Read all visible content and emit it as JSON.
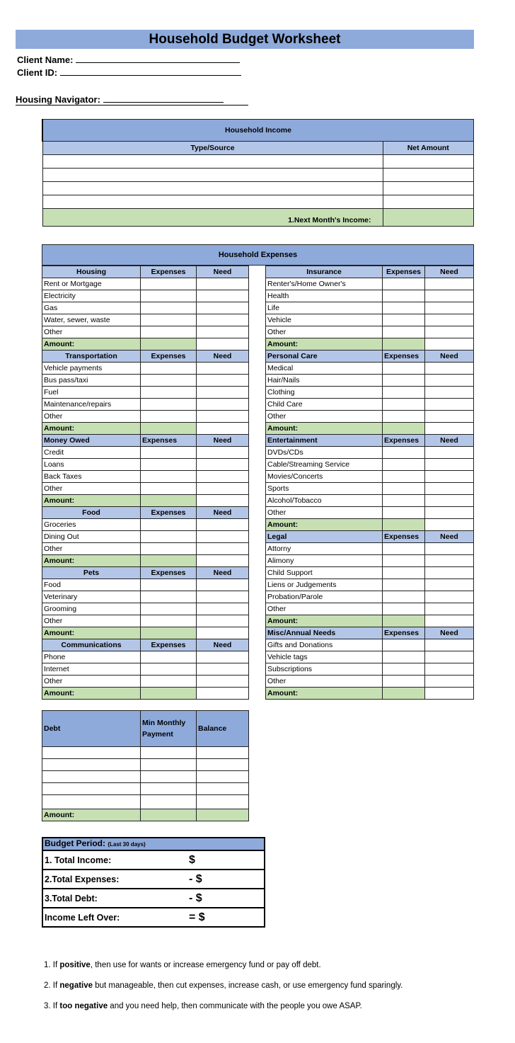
{
  "title": "Household Budget Worksheet",
  "client_name_label": "Client Name:",
  "client_id_label": "Client ID:",
  "housing_navigator_label": "Housing Navigator:",
  "income": {
    "title": "Household Income",
    "col_type": "Type/Source",
    "col_amount": "Net Amount",
    "total_label": "1.Next Month's Income:"
  },
  "expenses": {
    "title": "Household Expenses",
    "left": [
      {
        "name": "Housing",
        "center": true,
        "exp": "Expenses",
        "need": "Need",
        "items": [
          "Rent or Mortgage",
          "Electricity",
          "Gas",
          "Water, sewer, waste",
          "Other"
        ]
      },
      {
        "name": "Transportation",
        "center": true,
        "exp": "Expenses",
        "need": "Need",
        "items": [
          "Vehicle payments",
          "Bus pass/taxi",
          "Fuel",
          "Maintenance/repairs",
          "Other"
        ]
      },
      {
        "name": "Money Owed",
        "center": false,
        "exp": "Expenses",
        "need": "Need",
        "items": [
          "Credit",
          "Loans",
          "Back Taxes",
          "Other"
        ]
      },
      {
        "name": "Food",
        "center": true,
        "exp": "Expenses",
        "need": "Need",
        "items": [
          "Groceries",
          "Dining Out",
          "Other"
        ]
      },
      {
        "name": "Pets",
        "center": true,
        "exp": "Expenses",
        "need": "Need",
        "items": [
          "Food",
          "Veterinary",
          "Grooming",
          "Other"
        ]
      },
      {
        "name": "Communications",
        "center": true,
        "exp": "Expenses",
        "need": "Need",
        "items": [
          "Phone",
          "Internet",
          "Other"
        ]
      }
    ],
    "right": [
      {
        "name": "Insurance",
        "center": true,
        "exp": "Expenses",
        "need": "Need",
        "items": [
          "Renter's/Home Owner's",
          "Health",
          "Life",
          "Vehicle",
          "Other"
        ]
      },
      {
        "name": "Personal Care",
        "center": false,
        "exp": "Expenses",
        "need": "Need",
        "items": [
          "Medical",
          "Hair/Nails",
          "Clothing",
          "Child Care",
          "Other"
        ]
      },
      {
        "name": "Entertainment",
        "center": false,
        "exp": "Expenses",
        "need": "Need",
        "items": [
          "DVDs/CDs",
          "Cable/Streaming Service",
          "Movies/Concerts",
          "Sports",
          "Alcohol/Tobacco",
          "Other"
        ]
      },
      {
        "name": "Legal",
        "center": false,
        "exp": "Expenses",
        "need": "Need",
        "items": [
          "Attorny",
          "Alimony",
          "Child Support",
          "Liens or Judgements",
          "Probation/Parole",
          "Other"
        ]
      },
      {
        "name": "Misc/Annual Needs",
        "center": false,
        "exp": "Expenses",
        "need": "Need",
        "items": [
          "Gifts and Donations",
          "Vehicle tags",
          "Subscriptions",
          "Other"
        ]
      }
    ],
    "amount_label": "Amount:"
  },
  "debt": {
    "col_debt": "Debt",
    "col_min": "Min Monthly Payment",
    "col_balance": "Balance",
    "total_label": "Amount:"
  },
  "budget": {
    "title": "Budget Period:",
    "period_note": "(Last 30 days)",
    "rows": [
      {
        "label": "1. Total Income:",
        "sign": "$"
      },
      {
        "label": "2.Total Expenses:",
        "sign": "- $"
      },
      {
        "label": "3.Total Debt:",
        "sign": "- $"
      },
      {
        "label": "Income Left Over:",
        "sign": "= $"
      }
    ]
  },
  "notes": [
    {
      "pre": "1. If ",
      "bold": "positive",
      "post": ", then use for wants or increase emergency fund or pay off debt."
    },
    {
      "pre": "2. If ",
      "bold": "negative",
      "post": " but manageable, then cut expenses, increase cash, or use emergency fund sparingly."
    },
    {
      "pre": "3. If ",
      "bold": "too negative",
      "post": " and you need help, then communicate with the people you owe ASAP."
    }
  ],
  "colors": {
    "header_blue": "#8eaadb",
    "subheader_blue": "#b4c6e7",
    "total_green": "#c6e0b4"
  }
}
